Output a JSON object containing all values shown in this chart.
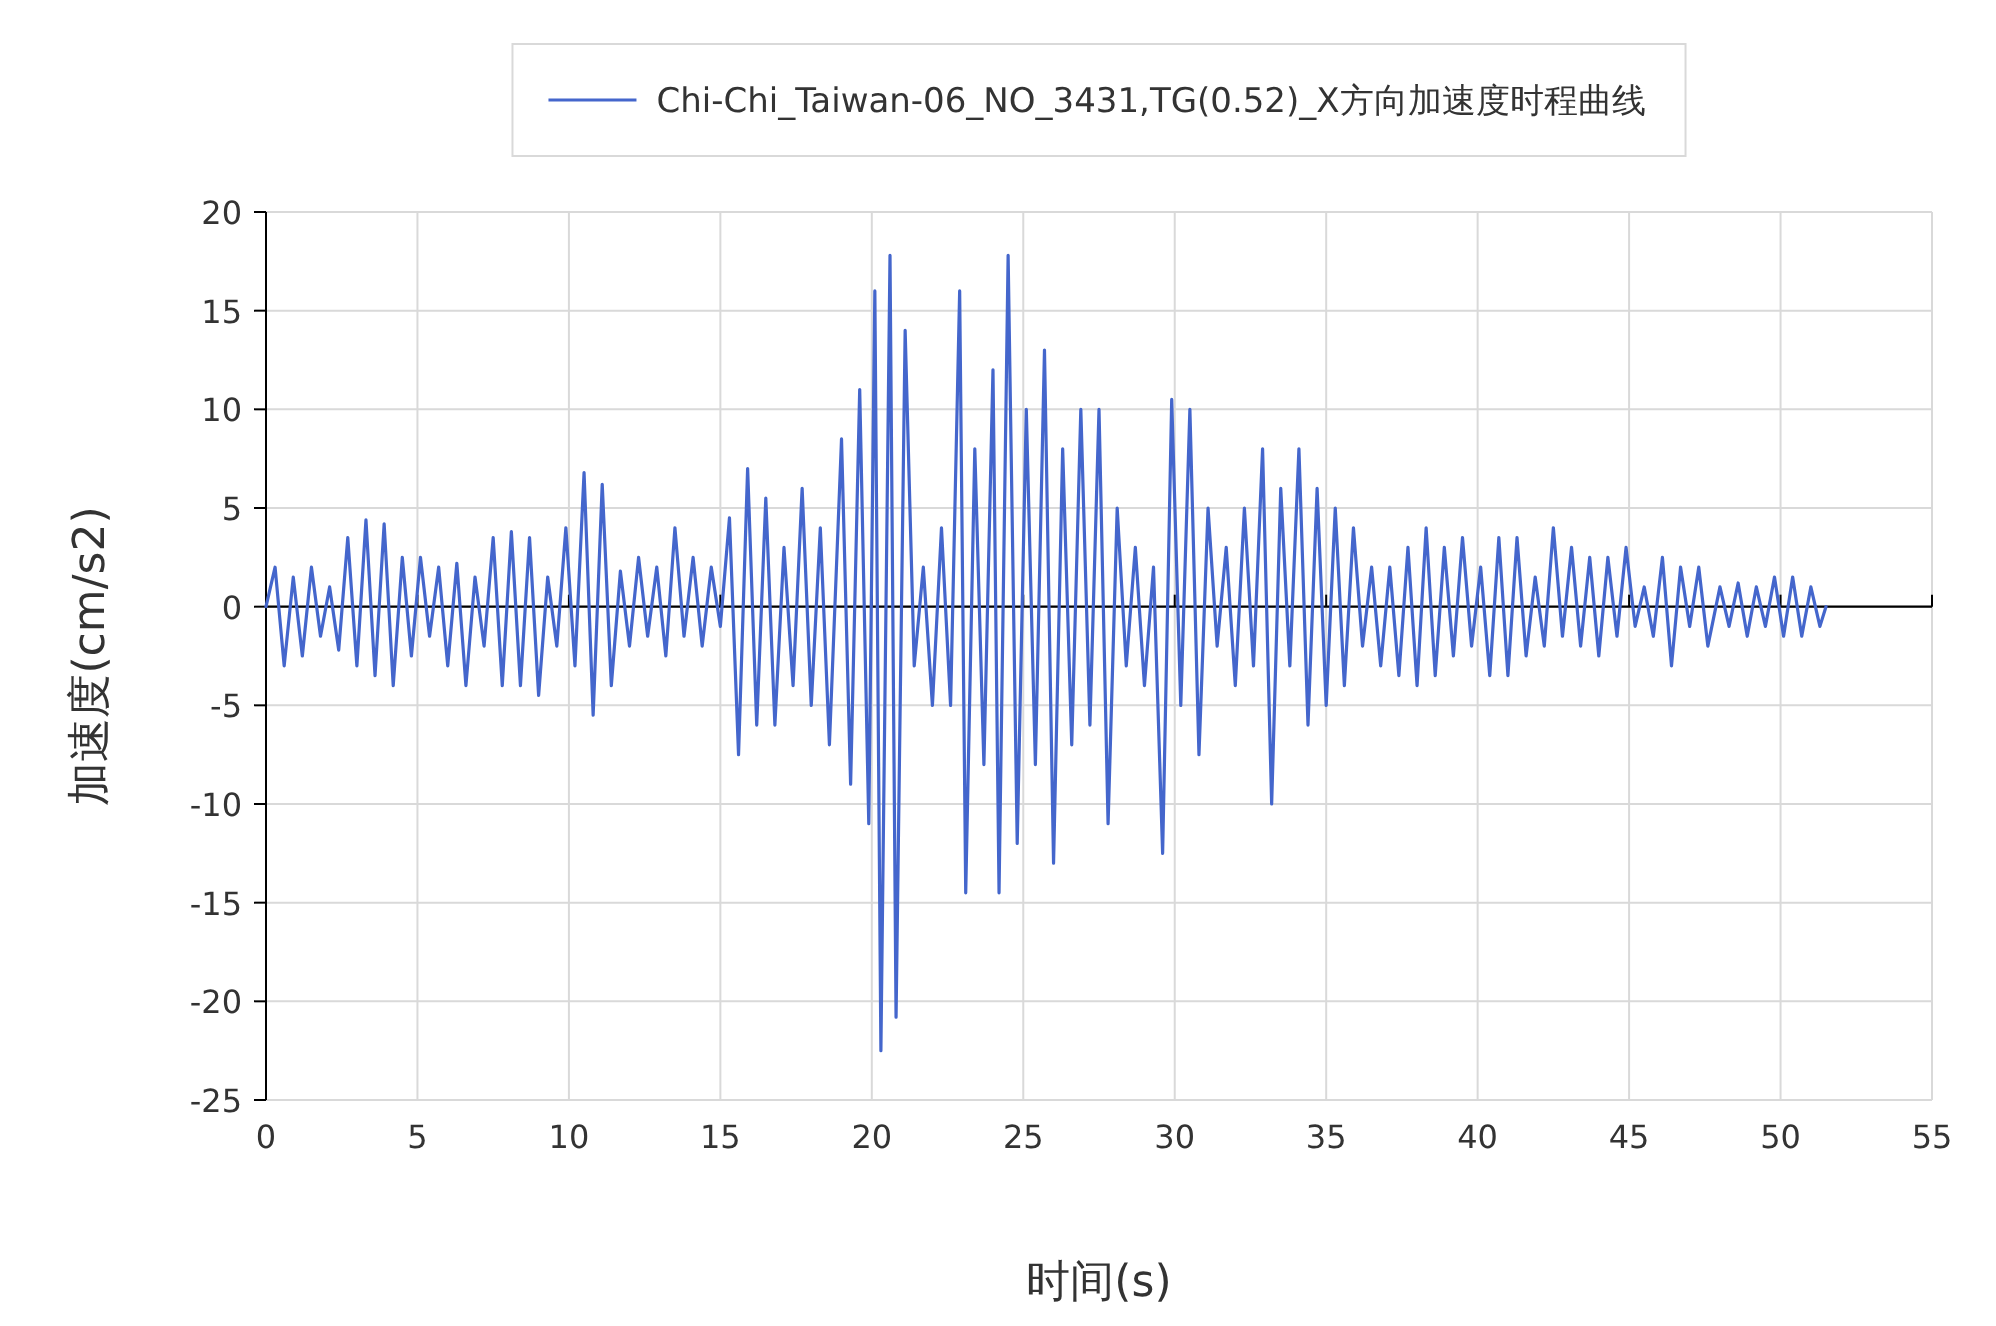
{
  "chart_data": {
    "type": "line",
    "xlabel": "时间(s)",
    "ylabel": "加速度(cm/s2)",
    "legend": "top",
    "grid": true,
    "xlim": [
      0,
      55
    ],
    "ylim": [
      -25,
      20
    ],
    "xticks": [
      0,
      5,
      10,
      15,
      20,
      25,
      30,
      35,
      40,
      45,
      50,
      55
    ],
    "yticks": [
      -25,
      -20,
      -15,
      -10,
      -5,
      0,
      5,
      10,
      15,
      20
    ],
    "series": [
      {
        "name": "Chi-Chi_Taiwan-06_NO_3431,TG(0.52)_X方向加速度时程曲线",
        "color": "#4466cc",
        "x": [
          0,
          0.3,
          0.6,
          0.9,
          1.2,
          1.5,
          1.8,
          2.1,
          2.4,
          2.7,
          3.0,
          3.3,
          3.6,
          3.9,
          4.2,
          4.5,
          4.8,
          5.1,
          5.4,
          5.7,
          6.0,
          6.3,
          6.6,
          6.9,
          7.2,
          7.5,
          7.8,
          8.1,
          8.4,
          8.7,
          9.0,
          9.3,
          9.6,
          9.9,
          10.2,
          10.5,
          10.8,
          11.1,
          11.4,
          11.7,
          12.0,
          12.3,
          12.6,
          12.9,
          13.2,
          13.5,
          13.8,
          14.1,
          14.4,
          14.7,
          15.0,
          15.3,
          15.6,
          15.9,
          16.2,
          16.5,
          16.8,
          17.1,
          17.4,
          17.7,
          18.0,
          18.3,
          18.6,
          19.0,
          19.3,
          19.6,
          19.9,
          20.1,
          20.3,
          20.6,
          20.8,
          21.1,
          21.4,
          21.7,
          22.0,
          22.3,
          22.6,
          22.9,
          23.1,
          23.4,
          23.7,
          24.0,
          24.2,
          24.5,
          24.8,
          25.1,
          25.4,
          25.7,
          26.0,
          26.3,
          26.6,
          26.9,
          27.2,
          27.5,
          27.8,
          28.1,
          28.4,
          28.7,
          29.0,
          29.3,
          29.6,
          29.9,
          30.2,
          30.5,
          30.8,
          31.1,
          31.4,
          31.7,
          32.0,
          32.3,
          32.6,
          32.9,
          33.2,
          33.5,
          33.8,
          34.1,
          34.4,
          34.7,
          35.0,
          35.3,
          35.6,
          35.9,
          36.2,
          36.5,
          36.8,
          37.1,
          37.4,
          37.7,
          38.0,
          38.3,
          38.6,
          38.9,
          39.2,
          39.5,
          39.8,
          40.1,
          40.4,
          40.7,
          41.0,
          41.3,
          41.6,
          41.9,
          42.2,
          42.5,
          42.8,
          43.1,
          43.4,
          43.7,
          44.0,
          44.3,
          44.6,
          44.9,
          45.2,
          45.5,
          45.8,
          46.1,
          46.4,
          46.7,
          47.0,
          47.3,
          47.6,
          48.0,
          48.3,
          48.6,
          48.9,
          49.2,
          49.5,
          49.8,
          50.1,
          50.4,
          50.7,
          51.0,
          51.3,
          51.5
        ],
        "values": [
          0,
          2,
          -3,
          1.5,
          -2.5,
          2,
          -1.5,
          1,
          -2.2,
          3.5,
          -3,
          4.4,
          -3.5,
          4.2,
          -4,
          2.5,
          -2.5,
          2.5,
          -1.5,
          2,
          -3,
          2.2,
          -4,
          1.5,
          -2,
          3.5,
          -4,
          3.8,
          -4,
          3.5,
          -4.5,
          1.5,
          -2,
          4,
          -3,
          6.8,
          -5.5,
          6.2,
          -4,
          1.8,
          -2,
          2.5,
          -1.5,
          2,
          -2.5,
          4,
          -1.5,
          2.5,
          -2,
          2,
          -1,
          4.5,
          -7.5,
          7,
          -6,
          5.5,
          -6,
          3,
          -4,
          6,
          -5,
          4,
          -7,
          8.5,
          -9,
          11,
          -11,
          16,
          -22.5,
          17.8,
          -20.8,
          14,
          -3,
          2,
          -5,
          4,
          -5,
          16,
          -14.5,
          8,
          -8,
          12,
          -14.5,
          17.8,
          -12,
          10,
          -8,
          13,
          -13,
          8,
          -7,
          10,
          -6,
          10,
          -11,
          5,
          -3,
          3,
          -4,
          2,
          -12.5,
          10.5,
          -5,
          10,
          -7.5,
          5,
          -2,
          3,
          -4,
          5,
          -3,
          8,
          -10,
          6,
          -3,
          8,
          -6,
          6,
          -5,
          5,
          -4,
          4,
          -2,
          2,
          -3,
          2,
          -3.5,
          3,
          -4,
          4,
          -3.5,
          3,
          -2.5,
          3.5,
          -2,
          2,
          -3.5,
          3.5,
          -3.5,
          3.5,
          -2.5,
          1.5,
          -2,
          4,
          -1.5,
          3,
          -2,
          2.5,
          -2.5,
          2.5,
          -1.5,
          3,
          -1,
          1,
          -1.5,
          2.5,
          -3,
          2,
          -1,
          2,
          -2,
          1,
          -1,
          1.2,
          -1.5,
          1,
          -1,
          1.5,
          -1.5,
          1.5,
          -1.5,
          1,
          -1,
          0
        ]
      }
    ]
  }
}
